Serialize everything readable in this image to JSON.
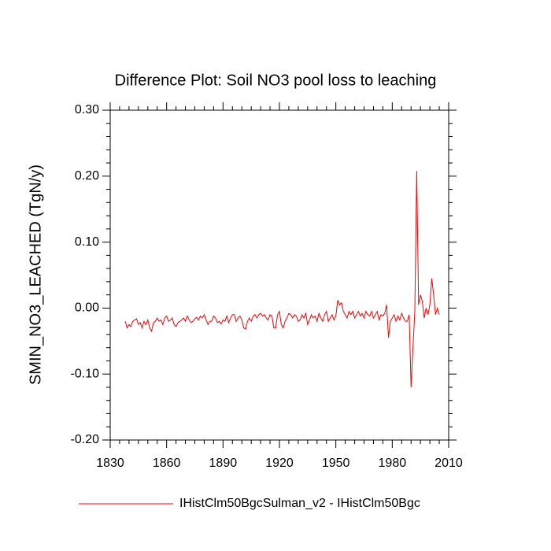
{
  "chart_data": {
    "type": "line",
    "title": "Difference Plot: Soil NO3 pool loss to leaching",
    "y_label": "SMIN_NO3_LEACHED  (TgN/y)",
    "x": [
      1838,
      1839,
      1840,
      1841,
      1842,
      1843,
      1844,
      1845,
      1846,
      1847,
      1848,
      1849,
      1850,
      1851,
      1852,
      1853,
      1854,
      1855,
      1856,
      1857,
      1858,
      1859,
      1860,
      1861,
      1862,
      1863,
      1864,
      1865,
      1866,
      1867,
      1868,
      1869,
      1870,
      1871,
      1872,
      1873,
      1874,
      1875,
      1876,
      1877,
      1878,
      1879,
      1880,
      1881,
      1882,
      1883,
      1884,
      1885,
      1886,
      1887,
      1888,
      1889,
      1890,
      1891,
      1892,
      1893,
      1894,
      1895,
      1896,
      1897,
      1898,
      1899,
      1900,
      1901,
      1902,
      1903,
      1904,
      1905,
      1906,
      1907,
      1908,
      1909,
      1910,
      1911,
      1912,
      1913,
      1914,
      1915,
      1916,
      1917,
      1918,
      1919,
      1920,
      1921,
      1922,
      1923,
      1924,
      1925,
      1926,
      1927,
      1928,
      1929,
      1930,
      1931,
      1932,
      1933,
      1934,
      1935,
      1936,
      1937,
      1938,
      1939,
      1940,
      1941,
      1942,
      1943,
      1944,
      1945,
      1946,
      1947,
      1948,
      1949,
      1950,
      1951,
      1952,
      1953,
      1954,
      1955,
      1956,
      1957,
      1958,
      1959,
      1960,
      1961,
      1962,
      1963,
      1964,
      1965,
      1966,
      1967,
      1968,
      1969,
      1970,
      1971,
      1972,
      1973,
      1974,
      1975,
      1976,
      1977,
      1978,
      1979,
      1980,
      1981,
      1982,
      1983,
      1984,
      1985,
      1986,
      1987,
      1988,
      1989,
      1990,
      1991,
      1992,
      1993,
      1994,
      1995,
      1996,
      1997,
      1998,
      1999,
      2000,
      2001,
      2002,
      2003,
      2004,
      2005
    ],
    "series": [
      {
        "name": "IHistClm50BgcSulman_v2 - IHistClm50Bgc",
        "color": "#ff0000",
        "values": [
          -0.02,
          -0.03,
          -0.025,
          -0.028,
          -0.02,
          -0.018,
          -0.016,
          -0.025,
          -0.022,
          -0.03,
          -0.02,
          -0.025,
          -0.018,
          -0.03,
          -0.035,
          -0.022,
          -0.02,
          -0.015,
          -0.02,
          -0.018,
          -0.025,
          -0.015,
          -0.012,
          -0.02,
          -0.018,
          -0.015,
          -0.025,
          -0.028,
          -0.022,
          -0.02,
          -0.018,
          -0.015,
          -0.02,
          -0.012,
          -0.018,
          -0.022,
          -0.02,
          -0.016,
          -0.014,
          -0.018,
          -0.012,
          -0.015,
          -0.01,
          -0.018,
          -0.025,
          -0.02,
          -0.02,
          -0.012,
          -0.015,
          -0.022,
          -0.02,
          -0.024,
          -0.018,
          -0.02,
          -0.012,
          -0.022,
          -0.015,
          -0.01,
          -0.01,
          -0.02,
          -0.015,
          -0.012,
          -0.018,
          -0.03,
          -0.032,
          -0.02,
          -0.015,
          -0.02,
          -0.012,
          -0.01,
          -0.015,
          -0.01,
          -0.008,
          -0.012,
          -0.01,
          -0.015,
          -0.018,
          -0.01,
          -0.012,
          -0.03,
          -0.03,
          -0.01,
          -0.005,
          -0.025,
          -0.03,
          -0.02,
          -0.015,
          -0.008,
          -0.01,
          -0.015,
          -0.01,
          -0.012,
          -0.02,
          -0.018,
          -0.01,
          -0.015,
          -0.008,
          -0.025,
          -0.018,
          -0.01,
          -0.015,
          -0.012,
          -0.02,
          -0.008,
          -0.015,
          -0.02,
          -0.01,
          -0.005,
          -0.02,
          -0.015,
          -0.01,
          -0.018,
          -0.012,
          0.012,
          0.005,
          0.008,
          -0.005,
          -0.01,
          -0.015,
          -0.005,
          -0.01,
          -0.005,
          -0.015,
          -0.01,
          -0.005,
          -0.012,
          -0.008,
          -0.015,
          -0.005,
          -0.01,
          -0.012,
          -0.005,
          -0.015,
          -0.01,
          -0.005,
          -0.018,
          -0.01,
          -0.012,
          -0.008,
          0.005,
          -0.045,
          -0.02,
          -0.015,
          -0.01,
          -0.02,
          -0.012,
          -0.018,
          -0.008,
          -0.015,
          -0.02,
          -0.02,
          -0.01,
          -0.12,
          -0.06,
          -0.005,
          0.208,
          0.005,
          0.02,
          0.01,
          -0.015,
          0.0,
          -0.01,
          0.005,
          0.045,
          0.02,
          -0.01,
          0.0,
          -0.01
        ]
      }
    ],
    "xlim": [
      1830,
      2010
    ],
    "xticks": [
      1830,
      1860,
      1890,
      1920,
      1950,
      1980,
      2010
    ],
    "ylim": [
      -0.2,
      0.3
    ],
    "yticks": [
      {
        "value": 0.3,
        "label": "0.30"
      },
      {
        "value": 0.2,
        "label": "0.20"
      },
      {
        "value": 0.1,
        "label": "0.10"
      },
      {
        "value": 0,
        "label": "0.00"
      },
      {
        "value": -0.1,
        "label": "-0.10"
      },
      {
        "value": -0.2,
        "label": "-0.20"
      }
    ]
  }
}
